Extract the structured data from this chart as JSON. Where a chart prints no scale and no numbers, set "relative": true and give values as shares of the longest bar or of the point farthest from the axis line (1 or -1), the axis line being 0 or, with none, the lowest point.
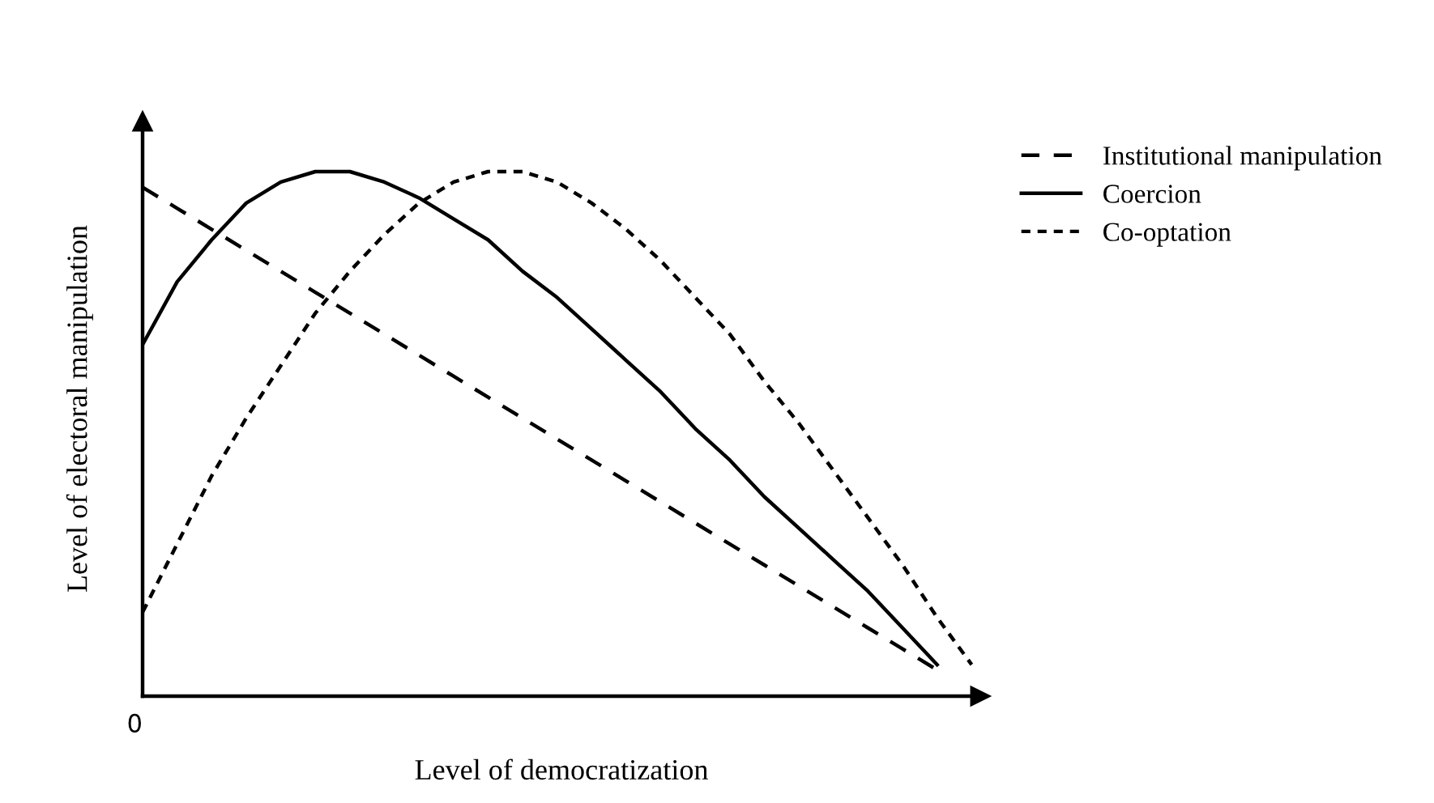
{
  "chart_data": {
    "type": "line",
    "relative": true,
    "xlabel": "Level of democratization",
    "ylabel": "Level of electoral manipulation",
    "categories": [
      null,
      null,
      null,
      null,
      null,
      null,
      null,
      null,
      null,
      null,
      null,
      null,
      null,
      null,
      null,
      null,
      null,
      null,
      null,
      null,
      null,
      null,
      null,
      null,
      null
    ],
    "series": [
      {
        "name": "Institutional manipulation",
        "color": "#000000",
        "line_style": "dashed",
        "values": [
          0.97,
          0.93,
          0.89,
          0.85,
          0.81,
          0.77,
          0.73,
          0.69,
          0.65,
          0.61,
          0.57,
          0.53,
          0.49,
          0.45,
          0.41,
          0.37,
          0.33,
          0.29,
          0.25,
          0.21,
          0.17,
          0.13,
          0.09,
          0.05,
          null
        ]
      },
      {
        "name": "Coercion",
        "color": "#000000",
        "line_style": "solid",
        "values": [
          0.67,
          0.79,
          0.87,
          0.94,
          0.98,
          1.0,
          1.0,
          0.98,
          0.95,
          0.91,
          0.87,
          0.81,
          0.76,
          0.7,
          0.64,
          0.58,
          0.51,
          0.45,
          0.38,
          0.32,
          0.26,
          0.2,
          0.13,
          0.06,
          null
        ]
      },
      {
        "name": "Co-optation",
        "color": "#000000",
        "line_style": "dotted",
        "values": [
          0.16,
          0.29,
          0.42,
          0.53,
          0.63,
          0.73,
          0.81,
          0.88,
          0.94,
          0.98,
          1.0,
          1.0,
          0.98,
          0.94,
          0.89,
          0.83,
          0.76,
          0.69,
          0.6,
          0.52,
          0.43,
          0.34,
          0.25,
          0.15,
          0.06
        ]
      }
    ],
    "annotations": [
      "0"
    ],
    "legend": "top right",
    "marker": "none"
  }
}
